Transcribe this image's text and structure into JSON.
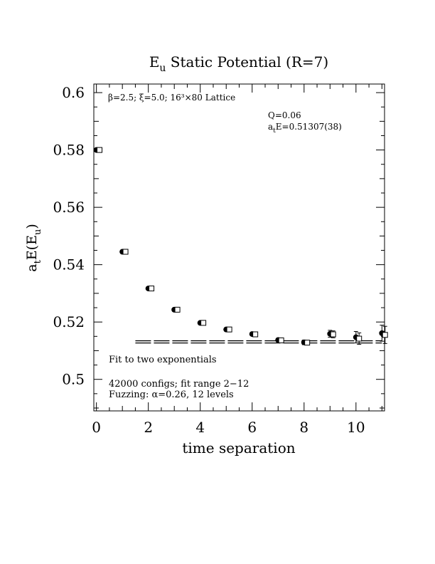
{
  "chart_data": {
    "type": "scatter",
    "title": "E",
    "title_sub": "u",
    "title_rest": " Static Potential (R=7)",
    "xlabel": "time separation",
    "ylabel": {
      "a": "a",
      "t": "t",
      "E": "E(E",
      "u": "u",
      "close": ")"
    },
    "xlim": [
      -0.1,
      11.1
    ],
    "ylim": [
      0.489,
      0.603
    ],
    "xticks": [
      0,
      2,
      4,
      6,
      8,
      10
    ],
    "xtick_labels": [
      "0",
      "2",
      "4",
      "6",
      "8",
      "10"
    ],
    "yticks": [
      0.5,
      0.52,
      0.54,
      0.56,
      0.58,
      0.6
    ],
    "ytick_labels": [
      "0.5",
      "0.52",
      "0.54",
      "0.56",
      "0.58",
      "0.6"
    ],
    "series": [
      {
        "marker": "filled-circle",
        "x": [
          0,
          1,
          2,
          3,
          4,
          5,
          6,
          7,
          8,
          9,
          10,
          11
        ],
        "y": [
          0.58,
          0.5445,
          0.5317,
          0.5243,
          0.5197,
          0.5174,
          0.5158,
          0.5137,
          0.5129,
          0.5159,
          0.5147,
          0.5161
        ],
        "err": [
          0.0003,
          0.0004,
          0.0004,
          0.0004,
          0.0004,
          0.0005,
          0.0005,
          0.0006,
          0.0008,
          0.0012,
          0.002,
          0.0028
        ]
      },
      {
        "marker": "open-square",
        "x": [
          0.12,
          1.12,
          2.12,
          3.12,
          4.12,
          5.12,
          6.12,
          7.12,
          8.12,
          9.12,
          10.12,
          11.12
        ],
        "y": [
          0.58,
          0.5445,
          0.5317,
          0.5243,
          0.5197,
          0.5174,
          0.5157,
          0.5136,
          0.5128,
          0.5157,
          0.5142,
          0.5155
        ],
        "err": [
          0.0003,
          0.0004,
          0.0004,
          0.0004,
          0.0004,
          0.0005,
          0.0005,
          0.0006,
          0.0008,
          0.0012,
          0.002,
          0.003
        ]
      }
    ],
    "fit": {
      "x_range": [
        1.5,
        11.0
      ],
      "value": 0.51307,
      "err": 0.00038
    },
    "annotations": {
      "lattice": "β=2.5; ξ=5.0; 16³×80 Lattice",
      "q": "Q=0.06",
      "energy_a": "a",
      "energy_t": "t",
      "energy_rest": "E=0.51307(38)",
      "fit_label": "Fit to two exponentials",
      "configs": "42000 configs; fit range 2−12",
      "fuzzing": "Fuzzing: α=0.26, 12 levels"
    },
    "grid": false
  }
}
